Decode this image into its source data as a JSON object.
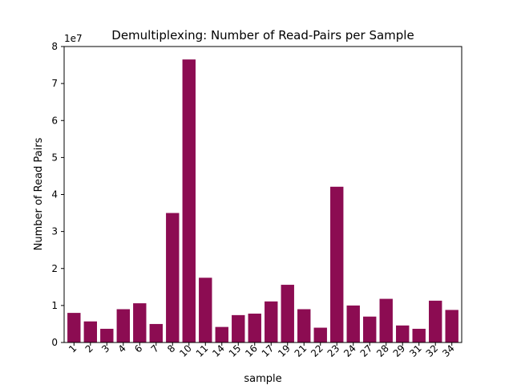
{
  "chart_data": {
    "type": "bar",
    "title": "Demultiplexing: Number of Read-Pairs per Sample",
    "xlabel": "sample",
    "ylabel": "Number of Read Pairs",
    "y_offset_label": "1e7",
    "ylim": [
      0,
      8
    ],
    "y_scale_factor": 10000000,
    "y_ticks": [
      0,
      1,
      2,
      3,
      4,
      5,
      6,
      7,
      8
    ],
    "categories": [
      "1",
      "2",
      "3",
      "4",
      "6",
      "7",
      "8",
      "10",
      "11",
      "14",
      "15",
      "16",
      "17",
      "19",
      "21",
      "22",
      "23",
      "24",
      "27",
      "28",
      "29",
      "31",
      "32",
      "34"
    ],
    "values": [
      0.8,
      0.57,
      0.37,
      0.9,
      1.06,
      0.5,
      3.5,
      7.65,
      1.75,
      0.42,
      0.74,
      0.78,
      1.11,
      1.56,
      0.9,
      0.4,
      4.21,
      1.0,
      0.7,
      1.18,
      0.46,
      0.37,
      1.13,
      0.88
    ],
    "bar_color": "#8c0c52",
    "grid": false,
    "legend": "none"
  }
}
